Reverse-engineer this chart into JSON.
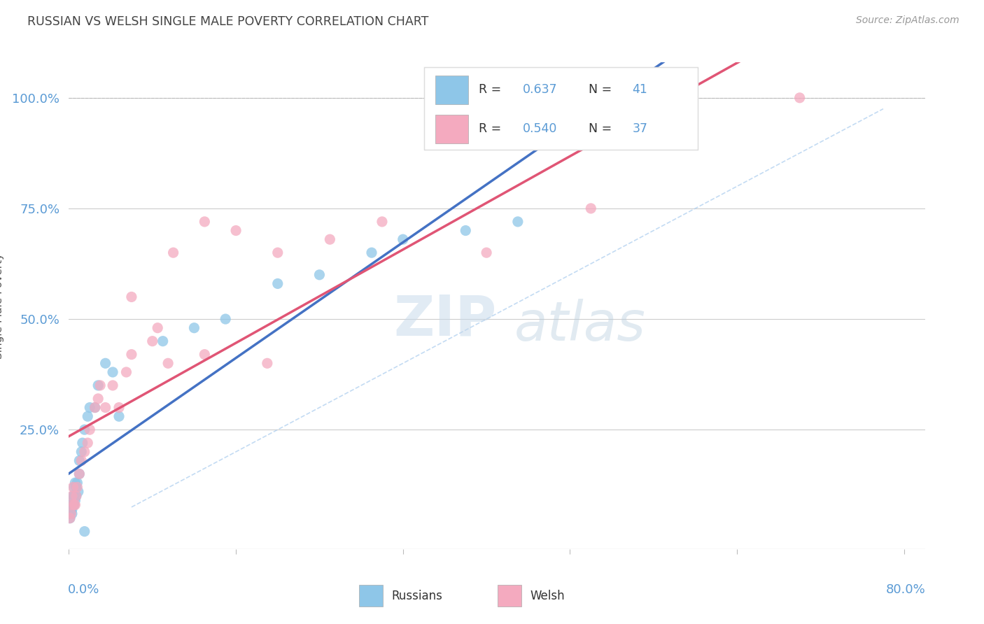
{
  "title": "RUSSIAN VS WELSH SINGLE MALE POVERTY CORRELATION CHART",
  "source": "Source: ZipAtlas.com",
  "ylabel": "Single Male Poverty",
  "legend_blue_r": "0.637",
  "legend_blue_n": "41",
  "legend_pink_r": "0.540",
  "legend_pink_n": "37",
  "xlim": [
    0.0,
    0.82
  ],
  "ylim": [
    -0.02,
    1.08
  ],
  "blue_scatter_color": "#8EC6E8",
  "pink_scatter_color": "#F4AABF",
  "blue_line_color": "#4472C4",
  "pink_line_color": "#E05575",
  "blue_dash_color": "#AACCEE",
  "grid_color": "#CCCCCC",
  "grid_top_color": "#BBBBBB",
  "background_color": "#FFFFFF",
  "title_color": "#444444",
  "axis_label_color": "#5B9BD5",
  "source_color": "#999999",
  "russians_x": [
    0.001,
    0.001,
    0.002,
    0.002,
    0.003,
    0.003,
    0.003,
    0.004,
    0.004,
    0.005,
    0.005,
    0.005,
    0.006,
    0.006,
    0.007,
    0.007,
    0.008,
    0.009,
    0.01,
    0.01,
    0.012,
    0.013,
    0.015,
    0.018,
    0.02,
    0.025,
    0.028,
    0.035,
    0.042,
    0.048,
    0.09,
    0.12,
    0.15,
    0.2,
    0.24,
    0.29,
    0.015,
    0.55,
    0.32,
    0.38,
    0.43
  ],
  "russians_y": [
    0.05,
    0.06,
    0.07,
    0.08,
    0.06,
    0.07,
    0.09,
    0.08,
    0.1,
    0.08,
    0.1,
    0.12,
    0.09,
    0.13,
    0.1,
    0.12,
    0.13,
    0.11,
    0.15,
    0.18,
    0.2,
    0.22,
    0.25,
    0.28,
    0.3,
    0.3,
    0.35,
    0.4,
    0.38,
    0.28,
    0.45,
    0.48,
    0.5,
    0.58,
    0.6,
    0.65,
    0.02,
    1.0,
    0.68,
    0.7,
    0.72
  ],
  "welsh_x": [
    0.001,
    0.002,
    0.003,
    0.003,
    0.004,
    0.005,
    0.006,
    0.007,
    0.008,
    0.01,
    0.012,
    0.015,
    0.018,
    0.02,
    0.025,
    0.028,
    0.03,
    0.035,
    0.042,
    0.048,
    0.06,
    0.08,
    0.1,
    0.13,
    0.16,
    0.2,
    0.25,
    0.3,
    0.19,
    0.06,
    0.085,
    0.055,
    0.13,
    0.095,
    0.4,
    0.5,
    0.7
  ],
  "welsh_y": [
    0.05,
    0.06,
    0.08,
    0.1,
    0.12,
    0.08,
    0.08,
    0.1,
    0.12,
    0.15,
    0.18,
    0.2,
    0.22,
    0.25,
    0.3,
    0.32,
    0.35,
    0.3,
    0.35,
    0.3,
    0.42,
    0.45,
    0.65,
    0.72,
    0.7,
    0.65,
    0.68,
    0.72,
    0.4,
    0.55,
    0.48,
    0.38,
    0.42,
    0.4,
    0.65,
    0.75,
    1.0
  ]
}
